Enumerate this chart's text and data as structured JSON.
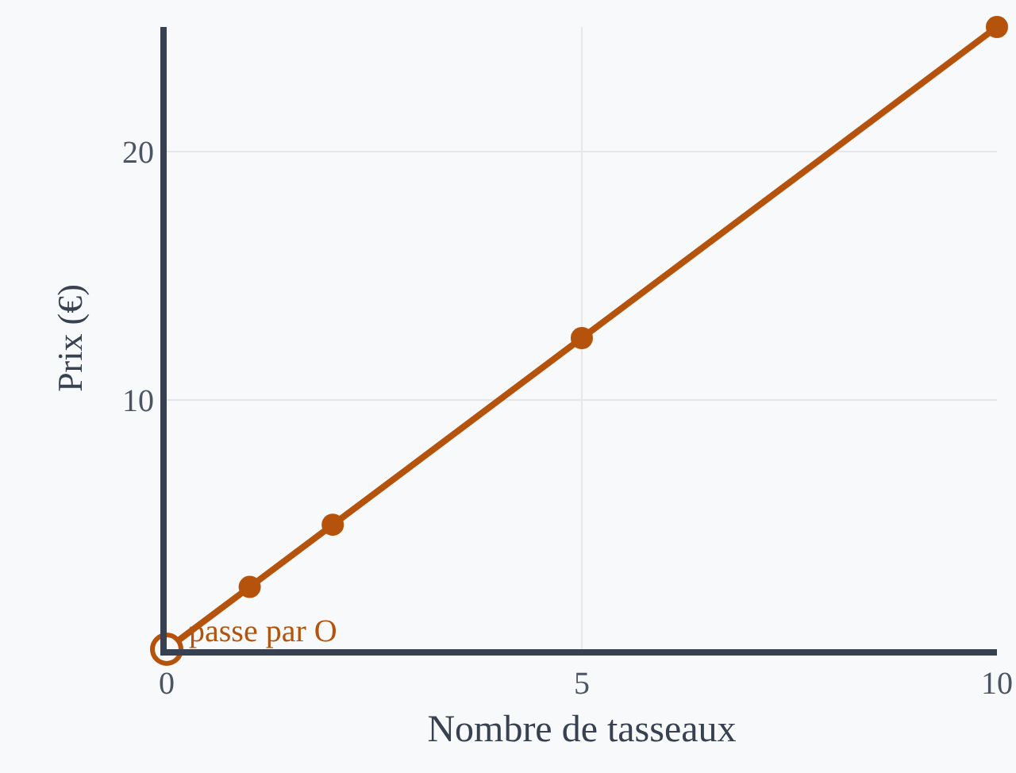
{
  "chart_data": {
    "type": "line",
    "xlabel": "Nombre de tasseaux",
    "ylabel": "Prix (€)",
    "x": [
      0,
      1,
      2,
      5,
      10
    ],
    "series": [
      {
        "color": "#b5530c",
        "values": [
          0,
          2.5,
          5,
          12.5,
          25
        ]
      }
    ],
    "xlim": [
      0,
      10
    ],
    "ylim": [
      0,
      25
    ],
    "xticks": [
      0,
      5,
      10
    ],
    "yticks": [
      10,
      20
    ],
    "grid": true,
    "marker": "circle",
    "line_style": "solid",
    "annotations": [
      {
        "text": "passe par O",
        "x": 0,
        "y": 0
      }
    ]
  }
}
